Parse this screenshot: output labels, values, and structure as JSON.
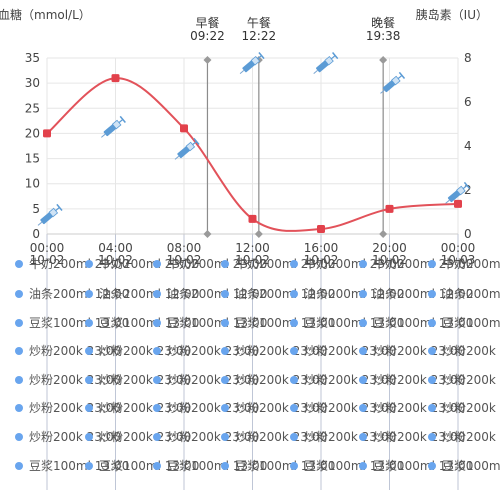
{
  "chart_data": {
    "type": "line",
    "title": "",
    "y_left_label": "血糖（mmol/L）",
    "y_right_label": "胰岛素（IU）",
    "y_left_ticks": [
      0,
      5,
      10,
      15,
      20,
      25,
      30,
      35
    ],
    "y_right_ticks": [
      0,
      2,
      4,
      6,
      8
    ],
    "ylim_left": [
      0,
      35
    ],
    "ylim_right": [
      0,
      8
    ],
    "x_ticks": [
      {
        "time": "00:00",
        "date": "10-02"
      },
      {
        "time": "04:00",
        "date": "10-02"
      },
      {
        "time": "08:00",
        "date": "10-02"
      },
      {
        "time": "12:00",
        "date": "10-02"
      },
      {
        "time": "16:00",
        "date": "10-02"
      },
      {
        "time": "20:00",
        "date": "10-02"
      },
      {
        "time": "00:00",
        "date": "10-03"
      }
    ],
    "xlim_hours": [
      0,
      24
    ],
    "grid": true,
    "glucose_series": [
      {
        "hour": 0,
        "value": 20
      },
      {
        "hour": 4,
        "value": 31
      },
      {
        "hour": 8,
        "value": 21
      },
      {
        "hour": 12,
        "value": 3
      },
      {
        "hour": 16,
        "value": 1
      },
      {
        "hour": 20,
        "value": 5
      },
      {
        "hour": 24,
        "value": 6
      }
    ],
    "meals": [
      {
        "label": "早餐",
        "time": "09:22",
        "hour": 9.37
      },
      {
        "label": "午餐",
        "time": "12:22",
        "hour": 12.37
      },
      {
        "label": "晚餐",
        "time": "19:38",
        "hour": 19.63
      }
    ],
    "insulin_doses": [
      {
        "hour": 0.1,
        "iu": 0.8
      },
      {
        "hour": 3.8,
        "iu": 4.8
      },
      {
        "hour": 8.1,
        "iu": 3.8
      },
      {
        "hour": 11.9,
        "iu": 7.7
      },
      {
        "hour": 16.2,
        "iu": 7.7
      },
      {
        "hour": 20.1,
        "iu": 6.8
      },
      {
        "hour": 23.9,
        "iu": 1.8
      }
    ],
    "food_rows": [
      {
        "row": 0,
        "text": "牛奶200ml 23:00",
        "items": [
          "牛奶200ml 23:00",
          "牛奶200ml 23:00",
          "牛奶200ml 23:00",
          "牛奶200ml 23:00",
          "牛奶200ml 23:00",
          "牛奶200ml 23:00",
          "牛奶200ml 23:00",
          "牛奶200ml 23:00"
        ]
      },
      {
        "row": 1,
        "text": "油条200ml 12:00",
        "items": [
          "油条200ml 12:00",
          "油条200ml 12:00",
          "油条200ml 12:00",
          "油条200ml 12:00",
          "油条200ml 12:00",
          "油条200ml 12:00",
          "油条200ml 12:00"
        ]
      },
      {
        "row": 2,
        "text": "豆浆100ml 13:00",
        "items": [
          "豆浆100ml 13:00",
          "豆浆100ml 13:00",
          "豆浆100ml 13:00",
          "豆浆100ml 13:00",
          "豆浆100ml 13:00",
          "豆浆100ml 13:00",
          "豆浆100ml 13:00"
        ]
      },
      {
        "row": 3,
        "text": "炒粉200k 23:00",
        "items": [
          "炒粉200k 23:00",
          "炒粉200k 23:00",
          "炒粉200k 23:00",
          "炒粉200k 23:00",
          "炒粉200k 23:00",
          "炒粉200k 23:00",
          "炒粉200k 23:00"
        ]
      },
      {
        "row": 4,
        "text": "炒粉200k 23:00",
        "items": [
          "炒粉200k 23:00",
          "炒粉200k 23:00",
          "炒粉200k 23:00",
          "炒粉200k 23:00",
          "炒粉200k 23:00",
          "炒粉200k 23:00",
          "炒粉200k 23:00"
        ]
      },
      {
        "row": 5,
        "text": "炒粉200k 23:00",
        "items": [
          "炒粉200k 23:00",
          "炒粉200k 23:00",
          "炒粉200k 23:00",
          "炒粉200k 23:00",
          "炒粉200k 23:00",
          "炒粉200k 23:00",
          "炒粉200k 23:00"
        ]
      },
      {
        "row": 6,
        "text": "炒粉200k 23:00",
        "items": [
          "炒粉200k 23:00",
          "炒粉200k 23:00",
          "炒粉200k 23:00",
          "炒粉200k 23:00",
          "炒粉200k 23:00",
          "炒粉200k 23:00",
          "炒粉200k 23:00"
        ]
      },
      {
        "row": 7,
        "text": "豆浆100ml 13:00",
        "items": [
          "豆浆100ml 13:00",
          "豆浆100ml 13:00",
          "豆浆100ml 13:00",
          "豆浆100ml 13:00",
          "豆浆100ml 13:00",
          "豆浆100ml 13:00",
          "豆浆100ml 13:00"
        ]
      }
    ],
    "colors": {
      "line": "#e2525a",
      "marker": "#e2414b",
      "grid": "#e6e6e6",
      "axis_text": "#444444",
      "meal_line": "#8c8c8c",
      "meal_marker": "#9a9a9a",
      "syringe": "#5b9bd5",
      "syringe_light": "#cfe3f5",
      "food_dot": "#69a5ee",
      "food_text": "#555555"
    },
    "icons": {
      "insulin": "syringe-icon",
      "meal": "diamond-marker-icon",
      "food": "food-dot-icon"
    }
  }
}
